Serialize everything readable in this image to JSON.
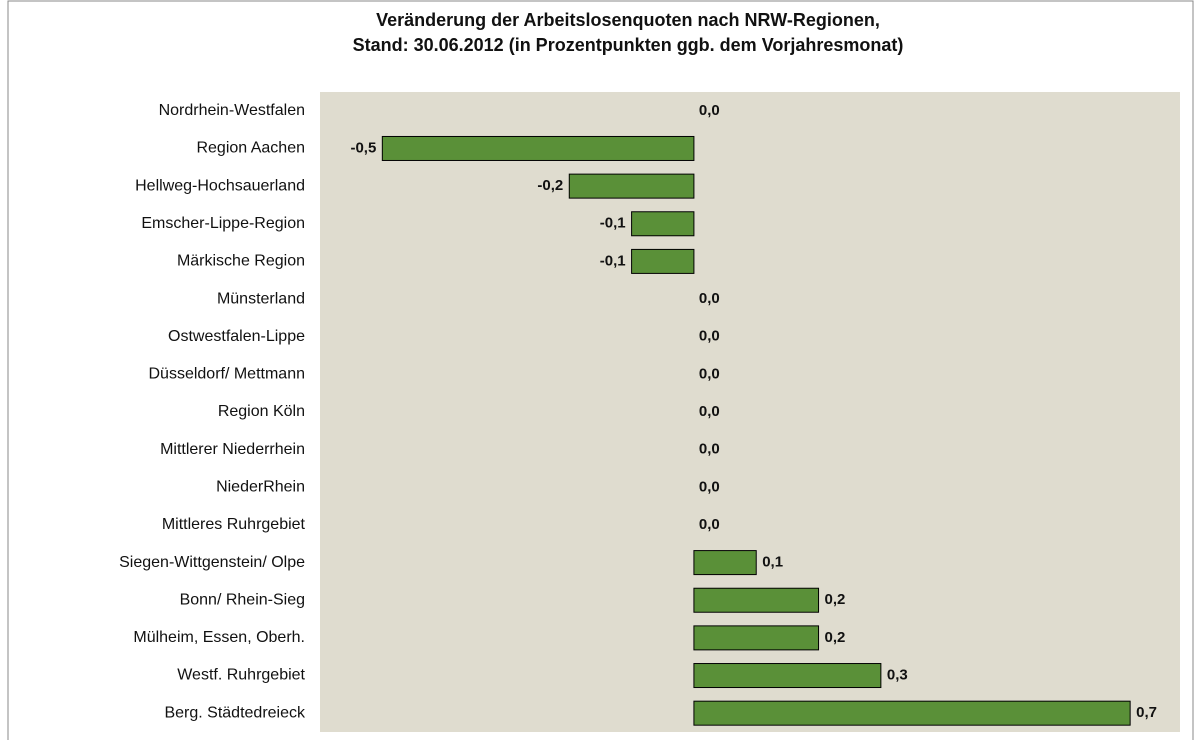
{
  "chart_data": {
    "type": "barh",
    "title": [
      "Veränderung der Arbeitslosenquoten nach NRW-Regionen,",
      "Stand: 30.06.2012 (in Prozentpunkten ggb. dem Vorjahresmonat)"
    ],
    "categories": [
      "Nordrhein-Westfalen",
      "Region Aachen",
      "Hellweg-Hochsauerland",
      "Emscher-Lippe-Region",
      "Märkische Region",
      "Münsterland",
      "Ostwestfalen-Lippe",
      "Düsseldorf/ Mettmann",
      "Region Köln",
      "Mittlerer Niederrhein",
      "NiederRhein",
      "Mittleres Ruhrgebiet",
      "Siegen-Wittgenstein/ Olpe",
      "Bonn/ Rhein-Sieg",
      "Mülheim, Essen, Oberh.",
      "Westf. Ruhrgebiet",
      "Berg. Städtedreieck"
    ],
    "values": [
      0,
      -0.5,
      -0.2,
      -0.1,
      -0.1,
      0,
      0,
      0,
      0,
      0,
      0,
      0,
      0.1,
      0.2,
      0.2,
      0.3,
      0.7
    ],
    "value_labels": [
      "0,0",
      "-0,5",
      "-0,2",
      "-0,1",
      "-0,1",
      "0,0",
      "0,0",
      "0,0",
      "0,0",
      "0,0",
      "0,0",
      "0,0",
      "0,1",
      "0,2",
      "0,2",
      "0,3",
      "0,7"
    ],
    "color": "#5a9038",
    "xlim": [
      -0.6,
      0.78
    ]
  }
}
